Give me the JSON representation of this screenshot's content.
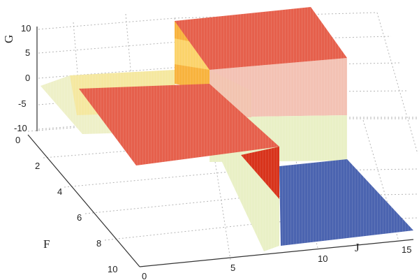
{
  "chart_data": {
    "type": "surface3d",
    "title": "",
    "xlabel": "J",
    "ylabel": "F",
    "zlabel": "G",
    "xlim": [
      0,
      15
    ],
    "ylim": [
      0,
      10
    ],
    "zlim": [
      -10,
      10
    ],
    "x_ticks": [
      "0",
      "5",
      "10",
      "15"
    ],
    "y_ticks": [
      "0",
      "2",
      "4",
      "6",
      "8",
      "10"
    ],
    "z_ticks": [
      "10",
      "5",
      "0",
      "-5",
      "-10"
    ],
    "grid": true,
    "colormap_colors": {
      "low": "#4a62ad",
      "mid": "#eef0c0",
      "high": "#e8604a",
      "highlight": "#f59a28",
      "dark": "#d43a1e"
    },
    "regions": [
      {
        "x": [
          0,
          2.5
        ],
        "y": [
          0,
          0
        ],
        "z": -2,
        "level": "mid"
      },
      {
        "x": [
          2.5,
          10
        ],
        "y": [
          0,
          5
        ],
        "z": -3,
        "level": "high"
      },
      {
        "x": [
          10,
          15
        ],
        "y": [
          0,
          5
        ],
        "z": 10,
        "level": "high"
      },
      {
        "x": [
          10,
          15
        ],
        "y": [
          5,
          10
        ],
        "z": -10,
        "level": "low"
      }
    ]
  }
}
